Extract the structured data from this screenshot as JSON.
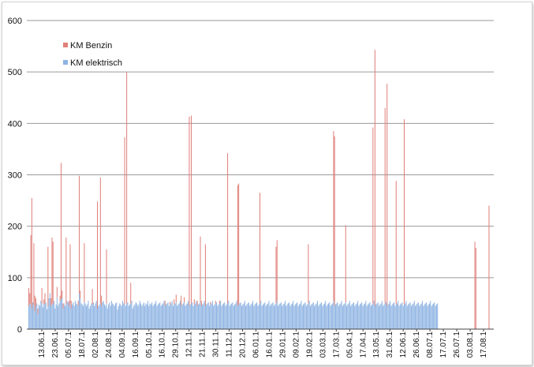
{
  "chart_data": {
    "type": "bar",
    "title": "",
    "xlabel": "",
    "ylabel": "",
    "ylim": [
      0,
      600
    ],
    "yticks": [
      0,
      100,
      200,
      300,
      400,
      500,
      600
    ],
    "grid": true,
    "legend_position": "top-left",
    "x_tick_labels": [
      "13.06.1",
      "23.06.1",
      "05.07.1",
      "18.07.1",
      "02.08.1",
      "24.08.1",
      "04.09.1",
      "16.09.1",
      "05.10.1",
      "16.10.1",
      "29.10.1",
      "12.11.1",
      "21.11.1",
      "30.11.1",
      "11.12.1",
      "20.12.1",
      "06.01.1",
      "16.01.1",
      "29.01.1",
      "09.02.1",
      "19.02.1",
      "03.03.1",
      "17.03.1",
      "05.04.1",
      "17.04.1",
      "13.05.1",
      "31.05.1",
      "12.06.1",
      "26.06.1",
      "08.07.1",
      "17.07.1",
      "26.07.1",
      "03.08.1",
      "17.08.1"
    ],
    "series": [
      {
        "name": "KM Benzin",
        "color": "#e0807a",
        "values": [
          35,
          20,
          135,
          215,
          0,
          120,
          30,
          15,
          0,
          10,
          0,
          0,
          0,
          30,
          0,
          10,
          20,
          0,
          0,
          115,
          0,
          0,
          15,
          130,
          120,
          0,
          0,
          0,
          20,
          0,
          0,
          10,
          265,
          15,
          10,
          0,
          0,
          130,
          0,
          0,
          10,
          115,
          15,
          0,
          0,
          0,
          0,
          0,
          0,
          10,
          228,
          15,
          0,
          0,
          0,
          115,
          0,
          0,
          0,
          0,
          0,
          0,
          0,
          30,
          0,
          0,
          0,
          0,
          208,
          0,
          0,
          245,
          20,
          0,
          0,
          0,
          0,
          105,
          0,
          0,
          0,
          0,
          0,
          0,
          0,
          0,
          0,
          0,
          0,
          0,
          0,
          0,
          0,
          0,
          0,
          325,
          0,
          450,
          0,
          0,
          0,
          40,
          0,
          0,
          0,
          0,
          0,
          0,
          0,
          0,
          0,
          0,
          0,
          0,
          0,
          0,
          0,
          0,
          0,
          0,
          0,
          0,
          0,
          0,
          0,
          0,
          0,
          0,
          0,
          0,
          0,
          0,
          0,
          0,
          0,
          10,
          0,
          0,
          0,
          0,
          5,
          0,
          0,
          0,
          10,
          0,
          15,
          0,
          0,
          0,
          0,
          20,
          0,
          0,
          10,
          0,
          0,
          0,
          0,
          368,
          0,
          365,
          0,
          0,
          10,
          0,
          0,
          10,
          0,
          0,
          128,
          10,
          0,
          0,
          0,
          120,
          0,
          0,
          0,
          0,
          5,
          0,
          0,
          0,
          0,
          5,
          0,
          0,
          0,
          5,
          0,
          0,
          0,
          0,
          0,
          0,
          0,
          292,
          0,
          0,
          0,
          0,
          0,
          0,
          0,
          0,
          0,
          235,
          235,
          0,
          0,
          0,
          0,
          0,
          0,
          0,
          0,
          0,
          0,
          0,
          0,
          0,
          0,
          0,
          0,
          0,
          0,
          0,
          0,
          215,
          0,
          0,
          0,
          0,
          0,
          0,
          0,
          0,
          0,
          0,
          0,
          0,
          0,
          0,
          0,
          110,
          118,
          0,
          0,
          0,
          0,
          0,
          0,
          0,
          0,
          0,
          0,
          0,
          0,
          0,
          0,
          0,
          0,
          0,
          0,
          0,
          0,
          0,
          0,
          0,
          0,
          0,
          0,
          0,
          0,
          0,
          0,
          115,
          0,
          0,
          0,
          0,
          0,
          0,
          0,
          0,
          0,
          0,
          0,
          0,
          0,
          0,
          0,
          0,
          0,
          0,
          0,
          0,
          0,
          0,
          0,
          0,
          330,
          330,
          0,
          0,
          0,
          0,
          0,
          0,
          0,
          0,
          0,
          0,
          150,
          0,
          0,
          0,
          0,
          0,
          0,
          0,
          0,
          0,
          0,
          0,
          0,
          0,
          0,
          0,
          0,
          0,
          0,
          0,
          0,
          0,
          0,
          0,
          0,
          0,
          0,
          342,
          0,
          498,
          0,
          0,
          0,
          0,
          0,
          0,
          0,
          0,
          0,
          380,
          0,
          432,
          0,
          0,
          0,
          0,
          0,
          0,
          0,
          0,
          240,
          0,
          0,
          0,
          0,
          0,
          0,
          0,
          360,
          0,
          0,
          0,
          0,
          0,
          0,
          0,
          0,
          0,
          0,
          0,
          0,
          0,
          0,
          0,
          0,
          0,
          0,
          0,
          0,
          0,
          0,
          0,
          0,
          0,
          0,
          0,
          0,
          0,
          0,
          0,
          0,
          0,
          0,
          0,
          0,
          0,
          0,
          0,
          0,
          0,
          0,
          0,
          0,
          0,
          0,
          0,
          0,
          0,
          0,
          0,
          0,
          0,
          0,
          0,
          0,
          0,
          0,
          0,
          0,
          0,
          0,
          0,
          0,
          0,
          0,
          0,
          0,
          0,
          170,
          158,
          0,
          0,
          0,
          0,
          0,
          0,
          0,
          0,
          0,
          0,
          0,
          0,
          240,
          0
        ]
      },
      {
        "name": "KM elektrisch",
        "color": "#8fb4e3",
        "values": [
          45,
          50,
          48,
          40,
          52,
          47,
          35,
          45,
          50,
          30,
          48,
          45,
          55,
          50,
          42,
          48,
          50,
          52,
          38,
          45,
          60,
          70,
          45,
          48,
          50,
          55,
          40,
          48,
          62,
          45,
          50,
          55,
          58,
          60,
          40,
          50,
          45,
          48,
          55,
          52,
          45,
          50,
          40,
          48,
          52,
          45,
          55,
          50,
          48,
          45,
          70,
          60,
          50,
          48,
          45,
          52,
          50,
          45,
          48,
          55,
          40,
          45,
          50,
          48,
          52,
          45,
          50,
          55,
          40,
          45,
          48,
          50,
          45,
          52,
          55,
          48,
          45,
          50,
          40,
          48,
          52,
          45,
          55,
          50,
          48,
          45,
          50,
          52,
          38,
          45,
          50,
          48,
          45,
          55,
          50,
          48,
          45,
          50,
          52,
          45,
          48,
          50,
          55,
          40,
          45,
          48,
          52,
          50,
          45,
          48,
          55,
          50,
          45,
          48,
          52,
          45,
          50,
          48,
          55,
          45,
          50,
          48,
          52,
          45,
          48,
          50,
          55,
          45,
          48,
          50,
          52,
          45,
          48,
          50,
          55,
          45,
          48,
          50,
          52,
          45,
          48,
          50,
          55,
          45,
          48,
          50,
          52,
          45,
          48,
          50,
          55,
          45,
          48,
          50,
          52,
          45,
          48,
          50,
          55,
          45,
          48,
          50,
          52,
          45,
          48,
          50,
          55,
          45,
          48,
          50,
          52,
          45,
          48,
          50,
          55,
          45,
          48,
          50,
          52,
          45,
          48,
          50,
          55,
          45,
          48,
          50,
          52,
          45,
          48,
          50,
          55,
          45,
          48,
          50,
          52,
          45,
          48,
          50,
          55,
          45,
          48,
          50,
          52,
          45,
          48,
          50,
          55,
          45,
          48,
          50,
          52,
          45,
          48,
          50,
          55,
          45,
          48,
          50,
          52,
          45,
          48,
          50,
          55,
          45,
          48,
          50,
          52,
          45,
          48,
          50,
          55,
          45,
          48,
          50,
          52,
          45,
          48,
          50,
          55,
          45,
          48,
          50,
          52,
          45,
          48,
          50,
          55,
          45,
          48,
          50,
          52,
          45,
          48,
          50,
          55,
          45,
          48,
          50,
          52,
          45,
          48,
          50,
          55,
          45,
          48,
          50,
          52,
          45,
          48,
          50,
          55,
          45,
          48,
          50,
          52,
          45,
          48,
          50,
          55,
          45,
          48,
          50,
          52,
          45,
          48,
          50,
          55,
          45,
          48,
          50,
          52,
          45,
          48,
          50,
          55,
          45,
          48,
          50,
          52,
          45,
          48,
          50,
          55,
          45,
          48,
          50,
          52,
          45,
          48,
          50,
          55,
          45,
          48,
          50,
          52,
          45,
          48,
          50,
          55,
          45,
          48,
          50,
          52,
          45,
          48,
          50,
          55,
          45,
          48,
          50,
          52,
          45,
          48,
          50,
          55,
          45,
          48,
          50,
          52,
          45,
          48,
          50,
          55,
          45,
          48,
          50,
          52,
          45,
          48,
          50,
          55,
          45,
          48,
          50,
          52,
          45,
          48,
          50,
          55,
          45,
          48,
          50,
          52,
          45,
          48,
          50,
          55,
          45,
          48,
          50,
          52,
          45,
          48,
          50,
          55,
          45,
          48,
          50,
          52,
          45,
          48,
          50,
          55,
          45,
          48,
          50,
          52,
          45,
          48,
          50,
          55,
          45,
          48,
          50,
          52,
          45,
          48,
          50,
          55,
          45,
          48,
          50,
          52,
          45,
          48,
          50
        ]
      }
    ]
  }
}
